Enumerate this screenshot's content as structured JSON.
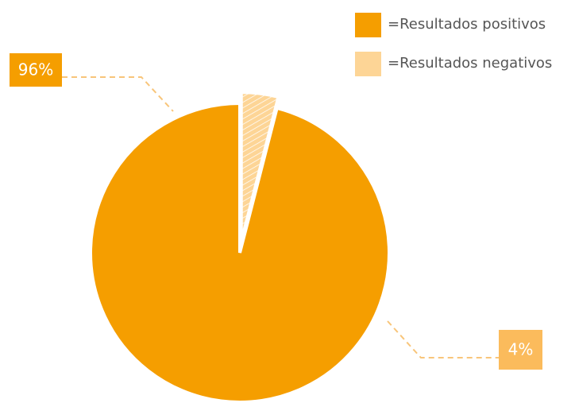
{
  "chart_data": {
    "type": "pie",
    "series": [
      {
        "name": "=Resultados positivos",
        "color": "#f59e00",
        "values": [
          96
        ],
        "value_labels": [
          "96%"
        ]
      },
      {
        "name": "=Resultados negativos",
        "color": "#fdd596",
        "values": [
          4
        ],
        "value_labels": [
          "4%"
        ]
      }
    ],
    "legend": "top-right"
  }
}
